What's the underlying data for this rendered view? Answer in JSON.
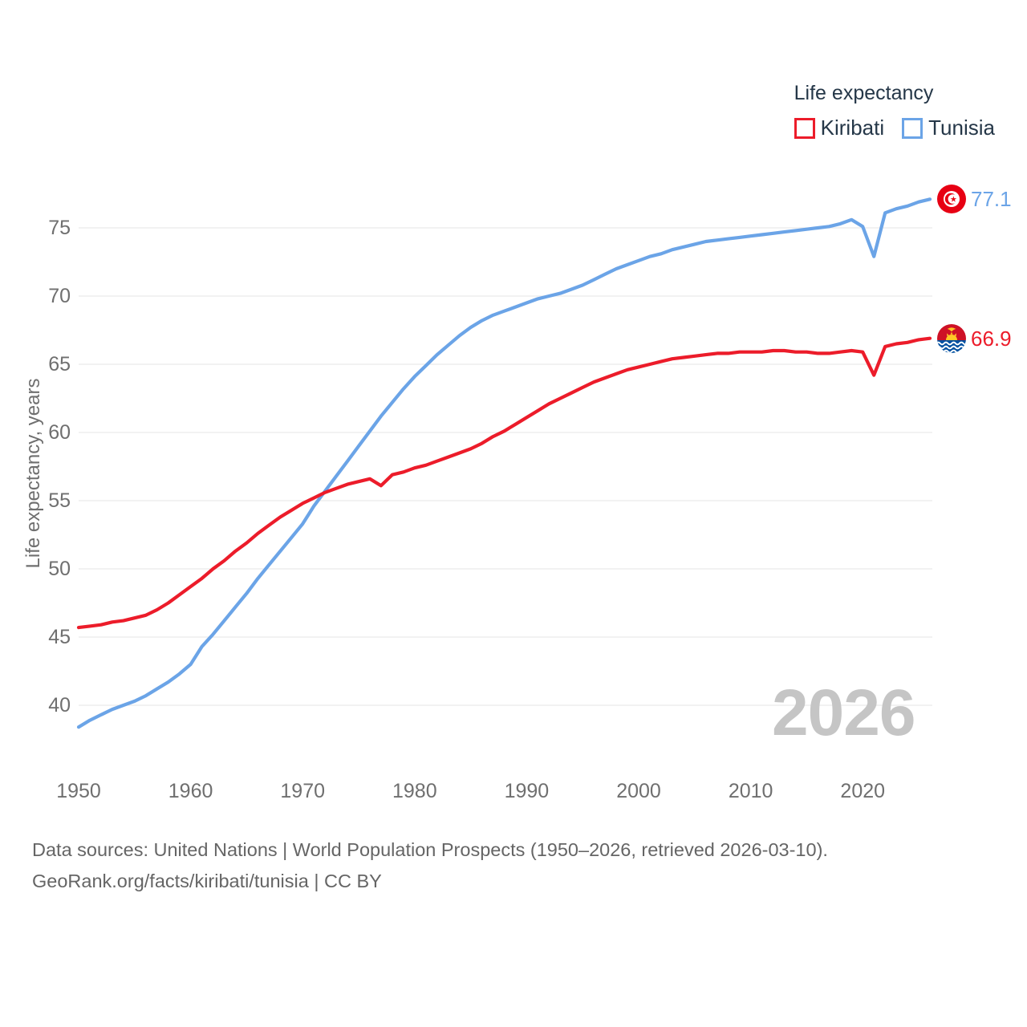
{
  "legend": {
    "title": "Life expectancy"
  },
  "chart_data": {
    "type": "line",
    "title": "Life expectancy",
    "xlabel": "",
    "ylabel": "Life expectancy, years",
    "x": {
      "start": 1950,
      "end": 2026,
      "step": 1
    },
    "xticks": [
      1950,
      1960,
      1970,
      1980,
      1990,
      2000,
      2010,
      2020
    ],
    "yticks": [
      40,
      45,
      50,
      55,
      60,
      65,
      70,
      75
    ],
    "ylim": [
      37.5,
      78.5
    ],
    "grid": "horizontal",
    "legend_position": "top-right",
    "watermark": "2026",
    "series": [
      {
        "name": "Tunisia",
        "color": "#6ba4e7",
        "end_label": "77.1",
        "flag_icon": "tunisia-flag-icon",
        "values": [
          38.4,
          38.9,
          39.3,
          39.7,
          40.0,
          40.3,
          40.7,
          41.2,
          41.7,
          42.3,
          43.0,
          44.3,
          45.2,
          46.2,
          47.2,
          48.2,
          49.3,
          50.3,
          51.3,
          52.3,
          53.3,
          54.6,
          55.7,
          56.8,
          57.9,
          59.0,
          60.1,
          61.2,
          62.2,
          63.2,
          64.1,
          64.9,
          65.7,
          66.4,
          67.1,
          67.7,
          68.2,
          68.6,
          68.9,
          69.2,
          69.5,
          69.8,
          70.0,
          70.2,
          70.5,
          70.8,
          71.2,
          71.6,
          72.0,
          72.3,
          72.6,
          72.9,
          73.1,
          73.4,
          73.6,
          73.8,
          74.0,
          74.1,
          74.2,
          74.3,
          74.4,
          74.5,
          74.6,
          74.7,
          74.8,
          74.9,
          75.0,
          75.1,
          75.3,
          75.6,
          75.1,
          72.9,
          76.1,
          76.4,
          76.6,
          76.9,
          77.1
        ]
      },
      {
        "name": "Kiribati",
        "color": "#ec1c2a",
        "end_label": "66.9",
        "flag_icon": "kiribati-flag-icon",
        "values": [
          45.7,
          45.8,
          45.9,
          46.1,
          46.2,
          46.4,
          46.6,
          47.0,
          47.5,
          48.1,
          48.7,
          49.3,
          50.0,
          50.6,
          51.3,
          51.9,
          52.6,
          53.2,
          53.8,
          54.3,
          54.8,
          55.2,
          55.6,
          55.9,
          56.2,
          56.4,
          56.6,
          56.1,
          56.9,
          57.1,
          57.4,
          57.6,
          57.9,
          58.2,
          58.5,
          58.8,
          59.2,
          59.7,
          60.1,
          60.6,
          61.1,
          61.6,
          62.1,
          62.5,
          62.9,
          63.3,
          63.7,
          64.0,
          64.3,
          64.6,
          64.8,
          65.0,
          65.2,
          65.4,
          65.5,
          65.6,
          65.7,
          65.8,
          65.8,
          65.9,
          65.9,
          65.9,
          66.0,
          66.0,
          65.9,
          65.9,
          65.8,
          65.8,
          65.9,
          66.0,
          65.9,
          64.2,
          66.3,
          66.5,
          66.6,
          66.8,
          66.9
        ]
      }
    ]
  },
  "footer": {
    "line1": "Data sources: United Nations | World Population Prospects (1950–2026, retrieved 2026-03-10).",
    "line2": "GeoRank.org/facts/kiribati/tunisia | CC BY"
  }
}
